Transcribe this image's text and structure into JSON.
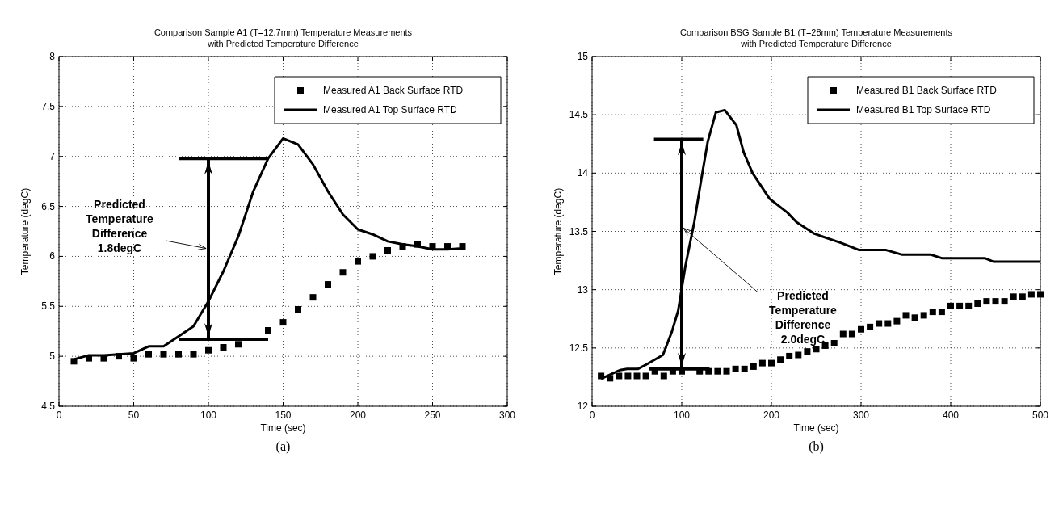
{
  "chart_data": [
    {
      "type": "line",
      "title": "Comparison Sample A1 (T=12.7mm) Temperature Measurements\nwith Predicted Temperature Difference",
      "xlabel": "Time (sec)",
      "ylabel": "Temperature (degC)",
      "xlim": [
        0,
        300
      ],
      "xticks": [
        0,
        50,
        100,
        150,
        200,
        250,
        300
      ],
      "ylim": [
        4.5,
        8
      ],
      "yticks": [
        4.5,
        5,
        5.5,
        6,
        6.5,
        7,
        7.5,
        8
      ],
      "grid": true,
      "legend": "top right",
      "series": [
        {
          "name": "Measured A1 Back Surface RTD",
          "type": "scatter",
          "marker": "square",
          "color": "#000000",
          "x": [
            10,
            20,
            30,
            40,
            50,
            60,
            70,
            80,
            90,
            100,
            110,
            120,
            130,
            140,
            150,
            160,
            170,
            180,
            190,
            200,
            210,
            220,
            230,
            240,
            250,
            260,
            270
          ],
          "values": [
            4.95,
            4.98,
            4.98,
            5.0,
            4.98,
            5.02,
            5.02,
            5.02,
            5.02,
            5.06,
            5.09,
            5.12,
            null,
            5.26,
            5.34,
            5.47,
            5.59,
            5.72,
            5.84,
            5.95,
            6.0,
            6.06,
            6.1,
            6.12,
            6.1,
            6.1,
            6.1
          ]
        },
        {
          "name": "Measured A1 Top Surface RTD",
          "type": "line",
          "marker": "none",
          "color": "#000000",
          "x": [
            10,
            20,
            30,
            40,
            50,
            60,
            70,
            80,
            90,
            100,
            110,
            120,
            130,
            140,
            150,
            160,
            170,
            180,
            190,
            200,
            210,
            220,
            230,
            240,
            250,
            260,
            270
          ],
          "values": [
            4.97,
            5.01,
            5.01,
            5.02,
            5.03,
            5.1,
            5.1,
            5.2,
            5.3,
            5.55,
            5.85,
            6.2,
            6.65,
            6.98,
            7.18,
            7.12,
            6.92,
            6.65,
            6.42,
            6.27,
            6.22,
            6.15,
            6.12,
            6.1,
            6.07,
            6.07,
            6.08
          ]
        },
        {
          "type": "line",
          "marker": "none",
          "color": "#000000",
          "x": [
            80,
            140
          ],
          "values": [
            6.98,
            6.98
          ]
        },
        {
          "type": "line",
          "marker": "none",
          "color": "#000000",
          "x": [
            80,
            140
          ],
          "values": [
            5.17,
            5.17
          ]
        },
        {
          "type": "line",
          "marker": "none",
          "color": "#000000",
          "x": [
            100,
            100
          ],
          "values": [
            6.98,
            5.17
          ]
        }
      ],
      "annotations": [
        "Predicted\nTemperature\nDifference\n1.8degC",
        "(a)"
      ]
    },
    {
      "type": "line",
      "title": "Comparison BSG Sample B1 (T=28mm) Temperature Measurements\nwith Predicted Temperature Difference",
      "xlabel": "Time (sec)",
      "ylabel": "Temperature (degC)",
      "xlim": [
        0,
        500
      ],
      "xticks": [
        0,
        100,
        200,
        300,
        400,
        500
      ],
      "ylim": [
        12,
        15
      ],
      "yticks": [
        12,
        12.5,
        13,
        13.5,
        14,
        14.5,
        15
      ],
      "grid": true,
      "legend": "top right",
      "series": [
        {
          "name": "Measured B1 Back Surface RTD",
          "type": "scatter",
          "marker": "square",
          "color": "#000000",
          "x": [
            10,
            20,
            30,
            40,
            50,
            60,
            70,
            80,
            90,
            100,
            110,
            120,
            130,
            140,
            150,
            160,
            170,
            180,
            190,
            200,
            210,
            220,
            230,
            240,
            250,
            260,
            270,
            280,
            290,
            300,
            310,
            320,
            330,
            340,
            350,
            360,
            370,
            380,
            390,
            400,
            410,
            420,
            430,
            440,
            450,
            460,
            470,
            480,
            490,
            500
          ],
          "values": [
            12.26,
            12.24,
            12.26,
            12.26,
            12.26,
            12.26,
            12.3,
            12.26,
            12.3,
            12.3,
            null,
            12.3,
            12.3,
            12.3,
            12.3,
            12.32,
            12.32,
            12.34,
            12.37,
            12.37,
            12.4,
            12.43,
            12.44,
            12.47,
            12.49,
            12.52,
            12.54,
            12.62,
            12.62,
            12.66,
            12.68,
            12.71,
            12.71,
            12.73,
            12.78,
            12.76,
            12.78,
            12.81,
            12.81,
            12.86,
            12.86,
            12.86,
            12.88,
            12.9,
            12.9,
            12.9,
            12.94,
            12.94,
            12.96,
            12.96
          ]
        },
        {
          "name": "Measured B1 Top Surface RTD",
          "type": "line",
          "marker": "none",
          "color": "#000000",
          "x": [
            8,
            11,
            31,
            39,
            51,
            61,
            79,
            89,
            96,
            104,
            114,
            121,
            129,
            138,
            148,
            161,
            169,
            179,
            198,
            218,
            228,
            248,
            278,
            298,
            328,
            346,
            378,
            390,
            438,
            448,
            500
          ],
          "values": [
            12.26,
            12.24,
            12.31,
            12.32,
            12.32,
            12.36,
            12.44,
            12.64,
            12.82,
            13.2,
            13.58,
            13.91,
            14.27,
            14.52,
            14.54,
            14.41,
            14.18,
            14.0,
            13.78,
            13.66,
            13.58,
            13.48,
            13.4,
            13.34,
            13.34,
            13.3,
            13.3,
            13.27,
            13.27,
            13.24,
            13.24
          ]
        },
        {
          "type": "line",
          "marker": "none",
          "color": "#000000",
          "x": [
            69,
            124
          ],
          "values": [
            14.29,
            14.29
          ]
        },
        {
          "type": "line",
          "marker": "none",
          "color": "#000000",
          "x": [
            64,
            131
          ],
          "values": [
            12.32,
            12.32
          ]
        },
        {
          "type": "line",
          "marker": "none",
          "color": "#000000",
          "x": [
            100,
            100
          ],
          "values": [
            14.29,
            12.32
          ]
        }
      ],
      "annotations": [
        "Predicted\nTemperature\nDifference\n2.0degC",
        "(b)"
      ]
    }
  ]
}
